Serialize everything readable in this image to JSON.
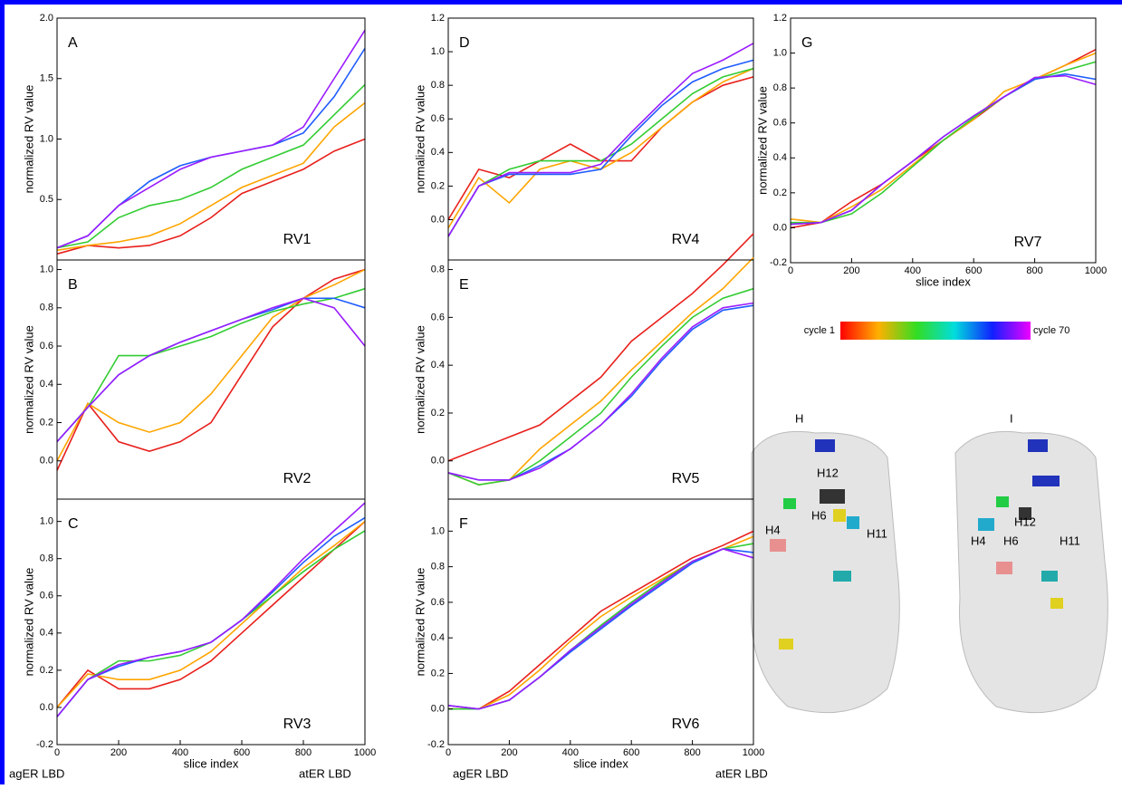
{
  "chart_data": [
    {
      "type": "line",
      "panel_label": "A",
      "annotation": "RV1",
      "ylabel": "normalized RV value",
      "xlim": [
        0,
        1000
      ],
      "ylim": [
        0,
        2.0
      ],
      "yticks": [
        0.5,
        {
          "value": 1,
          "label": "1.0"
        },
        1.5,
        {
          "value": 2,
          "label": "2.0"
        }
      ],
      "x": [
        0,
        100,
        200,
        300,
        400,
        500,
        600,
        700,
        800,
        900,
        1000
      ],
      "series": [
        {
          "color": "#e8201c",
          "values": [
            0.05,
            0.12,
            0.1,
            0.12,
            0.2,
            0.35,
            0.55,
            0.65,
            0.75,
            0.9,
            1.0
          ]
        },
        {
          "color": "#ffa500",
          "values": [
            0.08,
            0.12,
            0.15,
            0.2,
            0.3,
            0.45,
            0.6,
            0.7,
            0.8,
            1.1,
            1.3
          ]
        },
        {
          "color": "#33cc33",
          "values": [
            0.1,
            0.15,
            0.35,
            0.45,
            0.5,
            0.6,
            0.75,
            0.85,
            0.95,
            1.2,
            1.45
          ]
        },
        {
          "color": "#1e5cff",
          "values": [
            0.1,
            0.2,
            0.45,
            0.65,
            0.78,
            0.85,
            0.9,
            0.95,
            1.05,
            1.35,
            1.75
          ]
        },
        {
          "color": "#9a1cff",
          "values": [
            0.1,
            0.2,
            0.45,
            0.6,
            0.75,
            0.85,
            0.9,
            0.95,
            1.1,
            1.5,
            1.9
          ]
        }
      ]
    },
    {
      "type": "line",
      "panel_label": "B",
      "annotation": "RV2",
      "ylabel": "normalized RV value",
      "xlim": [
        0,
        1000
      ],
      "ylim": [
        -0.2,
        1.05
      ],
      "yticks": [
        {
          "value": 0,
          "label": "0.0"
        },
        0.2,
        0.4,
        0.6,
        0.8,
        {
          "value": 1,
          "label": "1.0"
        }
      ],
      "x": [
        0,
        100,
        200,
        300,
        400,
        500,
        600,
        700,
        800,
        900,
        1000
      ],
      "series": [
        {
          "color": "#e8201c",
          "values": [
            -0.05,
            0.3,
            0.1,
            0.05,
            0.1,
            0.2,
            0.45,
            0.7,
            0.85,
            0.95,
            1.0
          ]
        },
        {
          "color": "#ffa500",
          "values": [
            0.0,
            0.3,
            0.2,
            0.15,
            0.2,
            0.35,
            0.55,
            0.75,
            0.85,
            0.92,
            1.0
          ]
        },
        {
          "color": "#33cc33",
          "values": [
            0.1,
            0.28,
            0.55,
            0.55,
            0.6,
            0.65,
            0.72,
            0.78,
            0.82,
            0.85,
            0.9
          ]
        },
        {
          "color": "#1e5cff",
          "values": [
            0.1,
            0.28,
            0.45,
            0.55,
            0.62,
            0.68,
            0.74,
            0.79,
            0.85,
            0.85,
            0.8
          ]
        },
        {
          "color": "#9a1cff",
          "values": [
            0.1,
            0.28,
            0.45,
            0.55,
            0.62,
            0.68,
            0.74,
            0.8,
            0.85,
            0.8,
            0.6
          ]
        }
      ]
    },
    {
      "type": "line",
      "panel_label": "C",
      "annotation": "RV3",
      "ylabel": "normalized RV value",
      "xlabel": "slice index",
      "xlim": [
        0,
        1000
      ],
      "xticks": [
        0,
        200,
        400,
        600,
        800,
        1000
      ],
      "ylim": [
        -0.2,
        1.12
      ],
      "yticks": [
        -0.2,
        {
          "value": 0,
          "label": "0.0"
        },
        0.2,
        0.4,
        0.6,
        0.8,
        {
          "value": 1,
          "label": "1.0"
        }
      ],
      "x": [
        0,
        100,
        200,
        300,
        400,
        500,
        600,
        700,
        800,
        900,
        1000
      ],
      "series": [
        {
          "color": "#e8201c",
          "values": [
            0.0,
            0.2,
            0.1,
            0.1,
            0.15,
            0.25,
            0.4,
            0.55,
            0.7,
            0.85,
            1.0
          ]
        },
        {
          "color": "#ffa500",
          "values": [
            0.0,
            0.18,
            0.15,
            0.15,
            0.2,
            0.3,
            0.45,
            0.6,
            0.75,
            0.87,
            1.0
          ]
        },
        {
          "color": "#33cc33",
          "values": [
            -0.05,
            0.15,
            0.25,
            0.25,
            0.28,
            0.35,
            0.47,
            0.6,
            0.73,
            0.85,
            0.95
          ]
        },
        {
          "color": "#1e5cff",
          "values": [
            -0.05,
            0.15,
            0.22,
            0.27,
            0.3,
            0.35,
            0.47,
            0.62,
            0.78,
            0.92,
            1.02
          ]
        },
        {
          "color": "#9a1cff",
          "values": [
            -0.05,
            0.15,
            0.23,
            0.27,
            0.3,
            0.35,
            0.47,
            0.63,
            0.8,
            0.95,
            1.1
          ]
        }
      ]
    },
    {
      "type": "line",
      "panel_label": "D",
      "annotation": "RV4",
      "ylabel": "normalized RV value",
      "xlim": [
        0,
        1000
      ],
      "ylim": [
        -0.24,
        1.2
      ],
      "yticks": [
        {
          "value": 0,
          "label": "0.0"
        },
        0.2,
        0.4,
        0.6,
        0.8,
        {
          "value": 1,
          "label": "1.0"
        },
        1.2
      ],
      "x": [
        0,
        100,
        200,
        300,
        400,
        500,
        600,
        700,
        800,
        900,
        1000
      ],
      "series": [
        {
          "color": "#e8201c",
          "values": [
            0.0,
            0.3,
            0.25,
            0.35,
            0.45,
            0.35,
            0.35,
            0.55,
            0.7,
            0.8,
            0.85
          ]
        },
        {
          "color": "#ffa500",
          "values": [
            -0.05,
            0.25,
            0.1,
            0.3,
            0.35,
            0.3,
            0.4,
            0.55,
            0.7,
            0.82,
            0.9
          ]
        },
        {
          "color": "#33cc33",
          "values": [
            -0.1,
            0.2,
            0.3,
            0.35,
            0.35,
            0.35,
            0.45,
            0.6,
            0.75,
            0.85,
            0.9
          ]
        },
        {
          "color": "#1e5cff",
          "values": [
            -0.1,
            0.2,
            0.27,
            0.27,
            0.27,
            0.3,
            0.5,
            0.68,
            0.82,
            0.9,
            0.95
          ]
        },
        {
          "color": "#9a1cff",
          "values": [
            -0.1,
            0.2,
            0.28,
            0.28,
            0.28,
            0.33,
            0.52,
            0.7,
            0.87,
            0.95,
            1.05
          ]
        }
      ]
    },
    {
      "type": "line",
      "panel_label": "E",
      "annotation": "RV5",
      "ylabel": "normalized RV value",
      "xlim": [
        0,
        1000
      ],
      "ylim": [
        -0.16,
        0.84
      ],
      "yticks": [
        {
          "value": 0,
          "label": "0.0"
        },
        0.2,
        0.4,
        0.6,
        0.8
      ],
      "x": [
        0,
        100,
        200,
        300,
        400,
        500,
        600,
        700,
        800,
        900,
        1000
      ],
      "series": [
        {
          "color": "#e8201c",
          "values": [
            0.0,
            0.05,
            0.1,
            0.15,
            0.25,
            0.35,
            0.5,
            0.6,
            0.7,
            0.82,
            0.95
          ]
        },
        {
          "color": "#ffa500",
          "values": [
            -0.05,
            -0.1,
            -0.08,
            0.05,
            0.15,
            0.25,
            0.38,
            0.5,
            0.62,
            0.72,
            0.85
          ]
        },
        {
          "color": "#33cc33",
          "values": [
            -0.05,
            -0.1,
            -0.08,
            0.0,
            0.1,
            0.2,
            0.35,
            0.48,
            0.6,
            0.68,
            0.72
          ]
        },
        {
          "color": "#1e5cff",
          "values": [
            -0.05,
            -0.08,
            -0.08,
            -0.02,
            0.05,
            0.15,
            0.27,
            0.42,
            0.55,
            0.63,
            0.65
          ]
        },
        {
          "color": "#9a1cff",
          "values": [
            -0.05,
            -0.08,
            -0.08,
            -0.03,
            0.05,
            0.15,
            0.28,
            0.43,
            0.56,
            0.64,
            0.66
          ]
        }
      ]
    },
    {
      "type": "line",
      "panel_label": "F",
      "annotation": "RV6",
      "ylabel": "normalized RV value",
      "xlabel": "slice index",
      "xlim": [
        0,
        1000
      ],
      "xticks": [
        0,
        200,
        400,
        600,
        800,
        1000
      ],
      "ylim": [
        -0.2,
        1.18
      ],
      "yticks": [
        -0.2,
        {
          "value": 0,
          "label": "0.0"
        },
        0.2,
        0.4,
        0.6,
        0.8,
        {
          "value": 1,
          "label": "1.0"
        }
      ],
      "x": [
        0,
        100,
        200,
        300,
        400,
        500,
        600,
        700,
        800,
        900,
        1000
      ],
      "series": [
        {
          "color": "#e8201c",
          "values": [
            0.0,
            0.0,
            0.1,
            0.25,
            0.4,
            0.55,
            0.65,
            0.75,
            0.85,
            0.92,
            1.0
          ]
        },
        {
          "color": "#ffa500",
          "values": [
            0.0,
            0.0,
            0.08,
            0.22,
            0.38,
            0.52,
            0.63,
            0.73,
            0.83,
            0.9,
            0.97
          ]
        },
        {
          "color": "#33cc33",
          "values": [
            0.0,
            0.0,
            0.05,
            0.18,
            0.33,
            0.47,
            0.6,
            0.72,
            0.83,
            0.9,
            0.93
          ]
        },
        {
          "color": "#1e5cff",
          "values": [
            0.02,
            0.0,
            0.05,
            0.18,
            0.32,
            0.45,
            0.58,
            0.7,
            0.82,
            0.9,
            0.88
          ]
        },
        {
          "color": "#9a1cff",
          "values": [
            0.02,
            0.0,
            0.05,
            0.18,
            0.33,
            0.46,
            0.59,
            0.71,
            0.83,
            0.9,
            0.85
          ]
        }
      ]
    },
    {
      "type": "line",
      "panel_label": "G",
      "annotation": "RV7",
      "ylabel": "normalized RV value",
      "xlabel": "slice index",
      "xlim": [
        0,
        1000
      ],
      "xticks": [
        0,
        200,
        400,
        600,
        800,
        1000
      ],
      "ylim": [
        -0.2,
        1.2
      ],
      "yticks": [
        -0.2,
        {
          "value": 0,
          "label": "0.0"
        },
        0.2,
        0.4,
        0.6,
        0.8,
        {
          "value": 1,
          "label": "1.0"
        },
        1.2
      ],
      "x": [
        0,
        100,
        200,
        300,
        400,
        500,
        600,
        700,
        800,
        900,
        1000
      ],
      "series": [
        {
          "color": "#e8201c",
          "values": [
            0.0,
            0.03,
            0.15,
            0.25,
            0.38,
            0.5,
            0.62,
            0.75,
            0.85,
            0.93,
            1.02
          ]
        },
        {
          "color": "#ffa500",
          "values": [
            0.05,
            0.03,
            0.12,
            0.22,
            0.36,
            0.5,
            0.62,
            0.78,
            0.85,
            0.93,
            1.0
          ]
        },
        {
          "color": "#33cc33",
          "values": [
            0.03,
            0.03,
            0.08,
            0.2,
            0.35,
            0.5,
            0.63,
            0.75,
            0.85,
            0.9,
            0.95
          ]
        },
        {
          "color": "#1e5cff",
          "values": [
            0.02,
            0.03,
            0.1,
            0.25,
            0.38,
            0.52,
            0.64,
            0.75,
            0.85,
            0.88,
            0.85
          ]
        },
        {
          "color": "#9a1cff",
          "values": [
            0.02,
            0.03,
            0.1,
            0.25,
            0.38,
            0.52,
            0.64,
            0.75,
            0.86,
            0.87,
            0.82
          ]
        }
      ]
    }
  ],
  "colorbar": {
    "min_label": "cycle 1",
    "max_label": "cycle 70"
  },
  "footer": [
    "agER LBD",
    "atER LBD",
    "agER LBD",
    "atER LBD"
  ],
  "structures": [
    {
      "label": "H",
      "helices": [
        "H12",
        "H6",
        "H4",
        "H11"
      ]
    },
    {
      "label": "I",
      "helices": [
        "H12",
        "H6",
        "H4",
        "H11"
      ]
    }
  ]
}
